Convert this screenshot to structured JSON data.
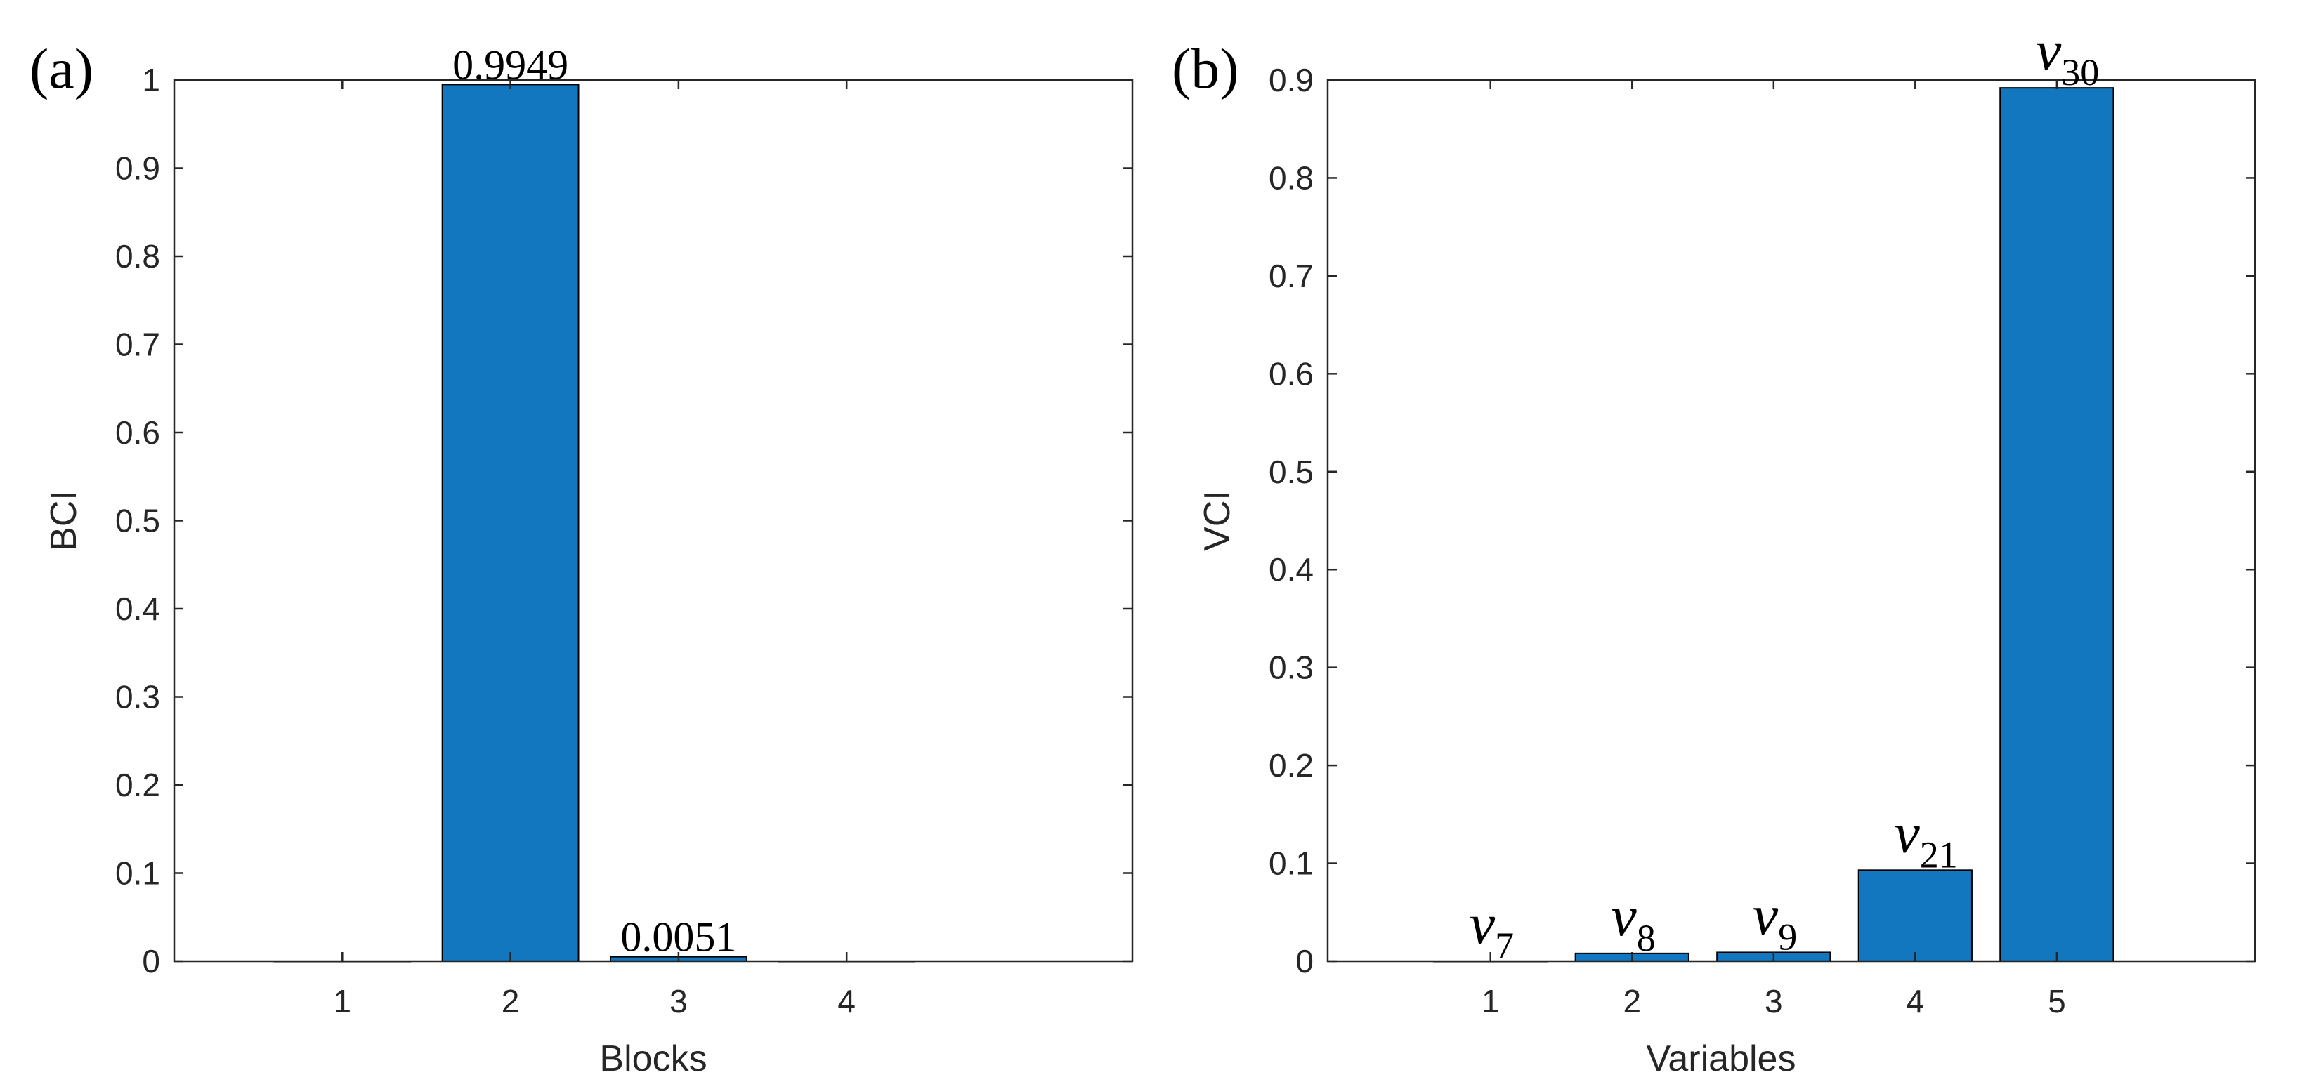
{
  "chart_data": [
    {
      "type": "bar",
      "panel_label": "(a)",
      "categories": [
        "1",
        "2",
        "3",
        "4"
      ],
      "values": [
        0,
        0.9949,
        0.0051,
        0
      ],
      "data_labels": [
        "",
        "0.9949",
        "0.0051",
        ""
      ],
      "xlabel": "Blocks",
      "ylabel": "BCI",
      "ylim": [
        0,
        1
      ],
      "yticks": [
        "0",
        "0.1",
        "0.2",
        "0.3",
        "0.4",
        "0.5",
        "0.6",
        "0.7",
        "0.8",
        "0.9",
        "1"
      ],
      "grid": false,
      "bar_color": "#1277BE"
    },
    {
      "type": "bar",
      "panel_label": "(b)",
      "categories": [
        "1",
        "2",
        "3",
        "4",
        "5"
      ],
      "values": [
        0,
        0.008,
        0.009,
        0.093,
        0.892
      ],
      "variable_labels": [
        {
          "main": "v",
          "sub": "7"
        },
        {
          "main": "v",
          "sub": "8"
        },
        {
          "main": "v",
          "sub": "9"
        },
        {
          "main": "v",
          "sub": "21"
        },
        {
          "main": "v",
          "sub": "30"
        }
      ],
      "xlabel": "Variables",
      "ylabel": "VCI",
      "ylim": [
        0,
        0.9
      ],
      "yticks": [
        "0",
        "0.1",
        "0.2",
        "0.3",
        "0.4",
        "0.5",
        "0.6",
        "0.7",
        "0.8",
        "0.9"
      ],
      "grid": false,
      "bar_color": "#1277BE"
    }
  ]
}
